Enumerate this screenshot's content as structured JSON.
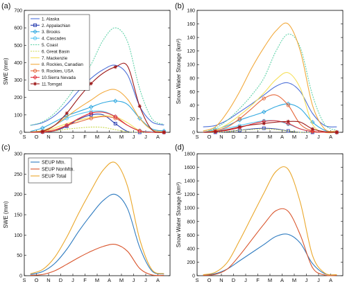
{
  "panel_labels": [
    "(a)",
    "(b)",
    "(c)",
    "(d)"
  ],
  "month_labels": [
    "S",
    "O",
    "N",
    "D",
    "J",
    "F",
    "M",
    "A",
    "M",
    "J",
    "J",
    "A"
  ],
  "colors": {
    "Alaska": "#4b6fd8",
    "Appalachian": "#2a3fb0",
    "Brooks": "#2fa8e0",
    "Cascades": "#56c4f2",
    "Coast": "#5fd2a8",
    "Great Basin": "#c8d84a",
    "Mackenzie": "#f6e05a",
    "Rockies, Canadian": "#f2a93b",
    "Rockies, USA": "#e5673a",
    "Sierra Nevada": "#e0303a",
    "Torngat": "#9e1a1a",
    "SEUP Mtn.": "#2e7bc0",
    "SEUP NonMtn.": "#d9532a",
    "SEUP Total": "#eaa72a"
  },
  "chart_data": [
    {
      "type": "line",
      "panel": "(a)",
      "ylabel": "SWE (mm)",
      "ylim": [
        0,
        700
      ],
      "yticks": [
        "0",
        "100",
        "200",
        "300",
        "400",
        "500",
        "600",
        "700"
      ],
      "x": [
        "S",
        "O",
        "N",
        "D",
        "J",
        "F",
        "M",
        "A",
        "M",
        "J",
        "J",
        "A"
      ],
      "legend": "top-left",
      "series": [
        {
          "name": "1. Alaska",
          "values": [
            40,
            55,
            95,
            160,
            240,
            310,
            360,
            385,
            330,
            150,
            60,
            42
          ]
        },
        {
          "name": "2. Appalachian",
          "values": [
            0,
            2,
            8,
            35,
            75,
            100,
            100,
            50,
            5,
            0,
            0,
            0
          ]
        },
        {
          "name": "3. Brooks",
          "values": [
            5,
            25,
            60,
            95,
            120,
            145,
            170,
            180,
            160,
            80,
            20,
            8
          ]
        },
        {
          "name": "4. Cascades",
          "values": [
            2,
            10,
            40,
            80,
            105,
            120,
            120,
            90,
            40,
            10,
            3,
            2
          ]
        },
        {
          "name": "5. Coast",
          "values": [
            40,
            60,
            110,
            190,
            290,
            390,
            530,
            600,
            520,
            250,
            80,
            45
          ]
        },
        {
          "name": "6. Great Basin",
          "values": [
            0,
            2,
            8,
            18,
            25,
            30,
            28,
            15,
            3,
            0,
            0,
            0
          ]
        },
        {
          "name": "7. Mackenzie",
          "values": [
            0,
            5,
            25,
            50,
            70,
            85,
            95,
            90,
            55,
            10,
            0,
            0
          ]
        },
        {
          "name": "8. Rockies, Canadian",
          "values": [
            2,
            10,
            40,
            90,
            140,
            185,
            230,
            245,
            190,
            80,
            15,
            3
          ]
        },
        {
          "name": "9. Rockies, USA",
          "values": [
            0,
            3,
            15,
            40,
            60,
            80,
            90,
            80,
            40,
            8,
            0,
            0
          ]
        },
        {
          "name": "10.Sierra Nevada",
          "values": [
            0,
            2,
            10,
            40,
            80,
            110,
            115,
            90,
            40,
            8,
            0,
            0
          ]
        },
        {
          "name": "11.Torngat",
          "values": [
            0,
            5,
            40,
            110,
            200,
            280,
            340,
            375,
            380,
            150,
            15,
            0
          ]
        }
      ]
    },
    {
      "type": "line",
      "panel": "(b)",
      "ylabel": "Snow Water Storage (km³)",
      "ylim": [
        0,
        180
      ],
      "yticks": [
        "0",
        "20",
        "40",
        "60",
        "80",
        "100",
        "120",
        "140",
        "160",
        "180"
      ],
      "x": [
        "S",
        "O",
        "N",
        "D",
        "J",
        "F",
        "M",
        "A",
        "M",
        "J",
        "J",
        "A"
      ],
      "series": [
        {
          "name": "1. Alaska",
          "values": [
            8,
            10,
            18,
            30,
            42,
            55,
            68,
            73,
            60,
            28,
            10,
            8
          ]
        },
        {
          "name": "2. Appalachian",
          "values": [
            0,
            0,
            1,
            3,
            5,
            6,
            5,
            2,
            0,
            0,
            0,
            0
          ]
        },
        {
          "name": "3. Brooks",
          "values": [
            0,
            4,
            10,
            18,
            24,
            30,
            38,
            42,
            35,
            15,
            3,
            0
          ]
        },
        {
          "name": "4. Cascades",
          "values": [
            0,
            2,
            6,
            10,
            14,
            17,
            17,
            12,
            5,
            1,
            0,
            0
          ]
        },
        {
          "name": "5. Coast",
          "values": [
            2,
            6,
            18,
            35,
            55,
            80,
            120,
            145,
            125,
            55,
            12,
            3
          ]
        },
        {
          "name": "6. Great Basin",
          "values": [
            0,
            0,
            1,
            3,
            4,
            5,
            4,
            2,
            0,
            0,
            0,
            0
          ]
        },
        {
          "name": "7. Mackenzie",
          "values": [
            0,
            3,
            12,
            25,
            40,
            58,
            78,
            88,
            65,
            12,
            0,
            0
          ]
        },
        {
          "name": "8. Rockies, Canadian",
          "values": [
            2,
            8,
            30,
            60,
            95,
            125,
            150,
            160,
            120,
            40,
            5,
            2
          ]
        },
        {
          "name": "9. Rockies, USA",
          "values": [
            0,
            2,
            8,
            20,
            35,
            50,
            55,
            40,
            12,
            2,
            0,
            0
          ]
        },
        {
          "name": "10.Sierra Nevada",
          "values": [
            0,
            1,
            3,
            7,
            12,
            16,
            17,
            13,
            5,
            1,
            0,
            0
          ]
        },
        {
          "name": "11.Torngat",
          "values": [
            0,
            1,
            4,
            8,
            11,
            13,
            15,
            16,
            15,
            5,
            1,
            0
          ]
        }
      ]
    },
    {
      "type": "line",
      "panel": "(c)",
      "ylabel": "SWE (mm)",
      "ylim": [
        0,
        300
      ],
      "yticks": [
        "0",
        "50",
        "100",
        "150",
        "200",
        "250",
        "300"
      ],
      "x": [
        "S",
        "O",
        "N",
        "D",
        "J",
        "F",
        "M",
        "A",
        "M",
        "J",
        "J",
        "A"
      ],
      "legend": "top-left",
      "series": [
        {
          "name": "SEUP Mtn.",
          "values": [
            3,
            10,
            30,
            65,
            110,
            150,
            185,
            200,
            165,
            70,
            12,
            4
          ]
        },
        {
          "name": "SEUP NonMtn.",
          "values": [
            1,
            3,
            12,
            28,
            45,
            60,
            72,
            77,
            60,
            18,
            2,
            1
          ]
        },
        {
          "name": "SEUP Total",
          "values": [
            5,
            15,
            45,
            95,
            155,
            210,
            260,
            278,
            220,
            90,
            15,
            5
          ]
        }
      ]
    },
    {
      "type": "line",
      "panel": "(d)",
      "ylabel": "Snow Water Storage (km³)",
      "ylim": [
        0,
        1800
      ],
      "yticks": [
        "0",
        "200",
        "400",
        "600",
        "800",
        "1000",
        "1200",
        "1400",
        "1600",
        "1800"
      ],
      "x": [
        "S",
        "O",
        "N",
        "D",
        "J",
        "F",
        "M",
        "A",
        "M",
        "J",
        "J",
        "A"
      ],
      "series": [
        {
          "name": "SEUP Mtn.",
          "values": [
            10,
            30,
            100,
            220,
            340,
            460,
            580,
            610,
            480,
            180,
            30,
            10
          ]
        },
        {
          "name": "SEUP NonMtn.",
          "values": [
            5,
            20,
            100,
            300,
            530,
            760,
            960,
            950,
            600,
            120,
            10,
            5
          ]
        },
        {
          "name": "SEUP Total",
          "values": [
            15,
            50,
            200,
            520,
            870,
            1220,
            1540,
            1570,
            1080,
            300,
            40,
            15
          ]
        }
      ]
    }
  ]
}
